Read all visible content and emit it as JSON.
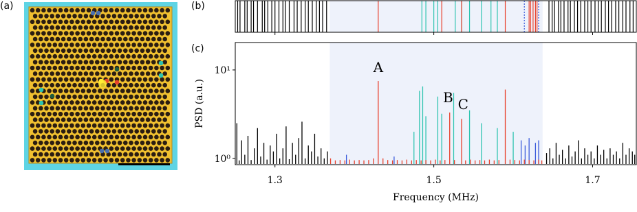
{
  "panels": [
    "(a)",
    "(b)",
    "(c)"
  ],
  "chart_data": [
    {
      "type": "rug",
      "xlim": [
        1.25,
        1.755
      ],
      "xticks": [
        1.3,
        1.5,
        1.7
      ],
      "highlight": [
        1.369,
        1.637
      ],
      "highlight_color": "#eef2fb",
      "series": [
        {
          "color": "#000000",
          "values": [
            1.253,
            1.256,
            1.262,
            1.265,
            1.27,
            1.273,
            1.278,
            1.284,
            1.287,
            1.291,
            1.296,
            1.3,
            1.305,
            1.31,
            1.313,
            1.318,
            1.324,
            1.328,
            1.333,
            1.338,
            1.342,
            1.347,
            1.352,
            1.356,
            1.36,
            1.365,
            1.645,
            1.649,
            1.652,
            1.657,
            1.66,
            1.664,
            1.669,
            1.672,
            1.677,
            1.681,
            1.685,
            1.69,
            1.694,
            1.698,
            1.703,
            1.707,
            1.711,
            1.716,
            1.72,
            1.724,
            1.729,
            1.733,
            1.738,
            1.742,
            1.747,
            1.751
          ]
        },
        {
          "color": "#2ec4b0",
          "values": [
            1.485,
            1.49,
            1.5,
            1.505,
            1.527,
            1.535,
            1.545,
            1.56,
            1.572,
            1.58
          ]
        },
        {
          "color": "#e8412c",
          "values": [
            1.43,
            1.51,
            1.535,
            1.59,
            1.62,
            1.622,
            1.625,
            1.628,
            1.63
          ]
        },
        {
          "color": "#3b5bdb",
          "dashed": true,
          "values": [
            1.614,
            1.632
          ]
        }
      ]
    },
    {
      "type": "stem",
      "xlabel": "Frequency (MHz)",
      "ylabel": "PSD (a.u.)",
      "xlim": [
        1.25,
        1.755
      ],
      "xticks": [
        1.3,
        1.5,
        1.7
      ],
      "ylim": [
        0.85,
        20.4
      ],
      "yscale": "log",
      "yticks": [
        {
          "value": 1,
          "label": "10⁰"
        },
        {
          "value": 10,
          "label": "10¹"
        }
      ],
      "highlight": [
        1.369,
        1.637
      ],
      "highlight_color": "#eef2fb",
      "series": [
        {
          "color": "#000000",
          "x": [
            1.252,
            1.255,
            1.258,
            1.262,
            1.266,
            1.27,
            1.274,
            1.278,
            1.282,
            1.286,
            1.29,
            1.294,
            1.298,
            1.302,
            1.306,
            1.31,
            1.314,
            1.318,
            1.322,
            1.326,
            1.33,
            1.334,
            1.338,
            1.342,
            1.346,
            1.35,
            1.354,
            1.358,
            1.362,
            1.366,
            1.642,
            1.646,
            1.65,
            1.654,
            1.658,
            1.662,
            1.666,
            1.67,
            1.674,
            1.678,
            1.682,
            1.686,
            1.69,
            1.694,
            1.698,
            1.702,
            1.706,
            1.71,
            1.714,
            1.718,
            1.722,
            1.726,
            1.73,
            1.734,
            1.738,
            1.742,
            1.746,
            1.75,
            1.753
          ],
          "values": [
            2.5,
            0.95,
            1.6,
            1.1,
            1.8,
            0.96,
            1.3,
            2.2,
            1.05,
            1.5,
            0.97,
            1.4,
            1.2,
            1.9,
            1.0,
            1.3,
            2.3,
            0.98,
            1.5,
            1.1,
            1.7,
            2.6,
            1.0,
            1.4,
            1.2,
            1.9,
            1.05,
            1.3,
            1.0,
            1.2,
            1.15,
            1.3,
            1.0,
            1.5,
            1.1,
            1.25,
            1.0,
            1.4,
            1.05,
            1.2,
            1.6,
            1.0,
            1.3,
            1.1,
            1.2,
            1.0,
            1.4,
            1.1,
            1.25,
            1.0,
            1.3,
            1.1,
            1.2,
            1.0,
            1.5,
            1.1,
            1.3,
            1.2,
            1.1
          ]
        },
        {
          "color": "#2ec4b0",
          "x": [
            1.475,
            1.482,
            1.486,
            1.49,
            1.505,
            1.51,
            1.525,
            1.545,
            1.56,
            1.58,
            1.6
          ],
          "values": [
            2.0,
            5.8,
            6.5,
            3.0,
            5.0,
            3.2,
            5.5,
            3.5,
            2.5,
            2.2,
            2.0
          ]
        },
        {
          "color": "#3b5bdb",
          "x": [
            1.39,
            1.45,
            1.61,
            1.615,
            1.62,
            1.628,
            1.632
          ],
          "values": [
            1.1,
            1.05,
            1.6,
            1.4,
            1.7,
            1.5,
            1.6
          ]
        },
        {
          "color": "#e8412c",
          "x": [
            1.37,
            1.376,
            1.382,
            1.388,
            1.394,
            1.4,
            1.406,
            1.412,
            1.418,
            1.424,
            1.43,
            1.436,
            1.442,
            1.448,
            1.454,
            1.46,
            1.466,
            1.472,
            1.478,
            1.484,
            1.49,
            1.496,
            1.502,
            1.508,
            1.514,
            1.52,
            1.526,
            1.535,
            1.54,
            1.546,
            1.552,
            1.558,
            1.564,
            1.57,
            1.576,
            1.582,
            1.59,
            1.596,
            1.602,
            1.608,
            1.614,
            1.62,
            1.626,
            1.632,
            1.636
          ],
          "values": [
            1.0,
            0.95,
            0.96,
            0.95,
            0.97,
            0.95,
            0.96,
            0.95,
            0.96,
            1.0,
            7.5,
            1.0,
            0.96,
            0.95,
            0.96,
            0.95,
            0.97,
            0.95,
            0.96,
            0.95,
            0.96,
            0.95,
            0.97,
            0.95,
            0.96,
            3.3,
            0.96,
            2.8,
            0.95,
            0.97,
            0.95,
            0.96,
            0.95,
            0.97,
            0.95,
            0.96,
            6.0,
            0.97,
            0.96,
            0.95,
            0.97,
            0.96,
            0.95,
            0.97,
            0.95
          ]
        }
      ],
      "annotations": [
        {
          "text": "A",
          "x": 1.43,
          "y": 9.5
        },
        {
          "text": "B",
          "x": 1.518,
          "y": 4.3
        },
        {
          "text": "C",
          "x": 1.537,
          "y": 3.6
        }
      ]
    }
  ]
}
